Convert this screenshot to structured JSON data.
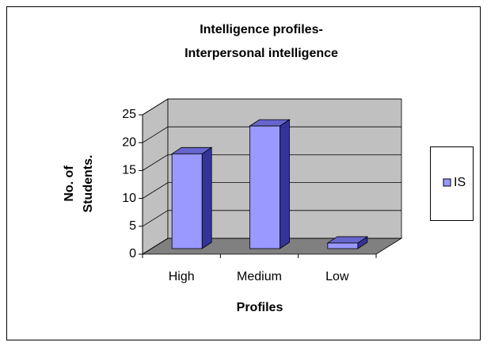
{
  "chart_data": {
    "type": "bar3d",
    "title": "Intelligence profiles-Interpersonal intelligence",
    "x_label": "Profiles",
    "y_label": "No. of Students.",
    "categories": [
      "High",
      "Medium",
      "Low"
    ],
    "series": [
      {
        "name": "IS",
        "color": "#9999ff",
        "values": [
          17,
          22,
          1
        ]
      }
    ],
    "ylim": [
      0,
      25
    ],
    "yticks": [
      0,
      5,
      10,
      15,
      20,
      25
    ],
    "grid": true,
    "legend": "right"
  }
}
